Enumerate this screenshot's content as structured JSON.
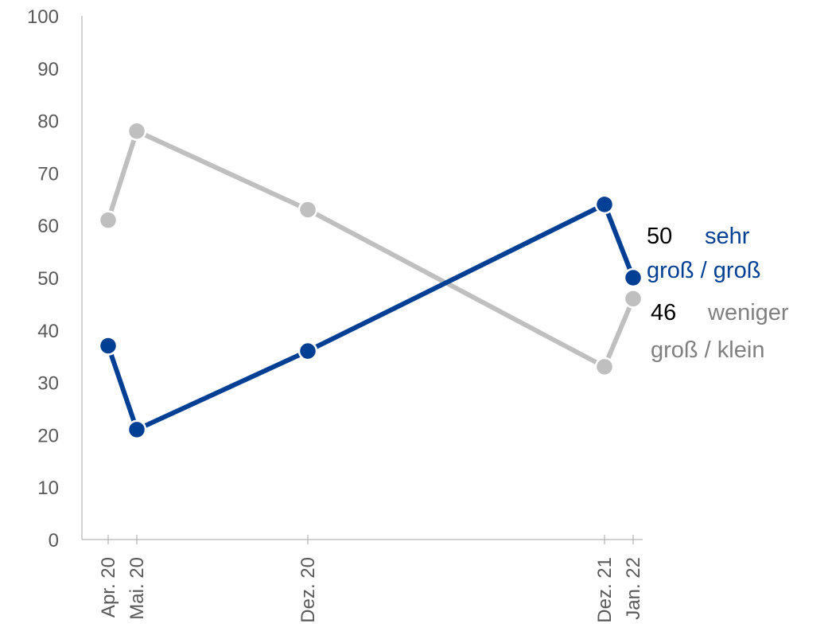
{
  "chart_data": {
    "type": "line",
    "x": [
      "Apr. 20",
      "Mai. 20",
      "Dez. 20",
      "Dez. 21",
      "Jan. 22"
    ],
    "ylim": [
      0,
      100
    ],
    "yticks": [
      0,
      10,
      20,
      30,
      40,
      50,
      60,
      70,
      80,
      90,
      100
    ],
    "grid": false,
    "series": [
      {
        "name_lines": [
          "sehr",
          "groß / groß"
        ],
        "values": [
          37,
          21,
          36,
          64,
          50
        ],
        "end_label": "50",
        "color": "#003f94"
      },
      {
        "name_lines": [
          "weniger",
          "groß / klein"
        ],
        "values": [
          61,
          78,
          63,
          33,
          46
        ],
        "end_label": "46",
        "color": "#bfbfbf"
      }
    ],
    "colors": {
      "axis": "#a6a6a6",
      "tick_text": "#595959",
      "end_value": "#000000"
    }
  }
}
